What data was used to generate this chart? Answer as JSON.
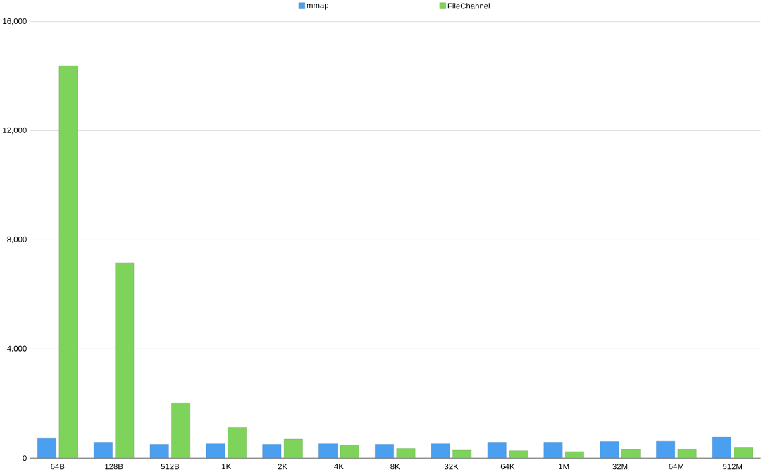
{
  "chart_data": {
    "type": "bar",
    "categories": [
      "64B",
      "128B",
      "512B",
      "1K",
      "2K",
      "4K",
      "8K",
      "32K",
      "64K",
      "1M",
      "32M",
      "64M",
      "512M"
    ],
    "series": [
      {
        "name": "mmap",
        "color": "#4a9ff0",
        "values": [
          720,
          560,
          510,
          530,
          510,
          530,
          510,
          530,
          560,
          560,
          610,
          620,
          780
        ]
      },
      {
        "name": "FileChannel",
        "color": "#7ed35a",
        "values": [
          14390,
          7160,
          2010,
          1130,
          700,
          480,
          350,
          290,
          270,
          240,
          320,
          330,
          380
        ]
      }
    ],
    "ylim": [
      0,
      16000
    ],
    "yticks": [
      0,
      {
        "value": 4000,
        "label": "4,000"
      },
      {
        "value": 8000,
        "label": "8,000"
      },
      {
        "value": 12000,
        "label": "12,000"
      },
      {
        "value": 16000,
        "label": "16,000"
      }
    ],
    "grid": "y",
    "legend": "top"
  }
}
